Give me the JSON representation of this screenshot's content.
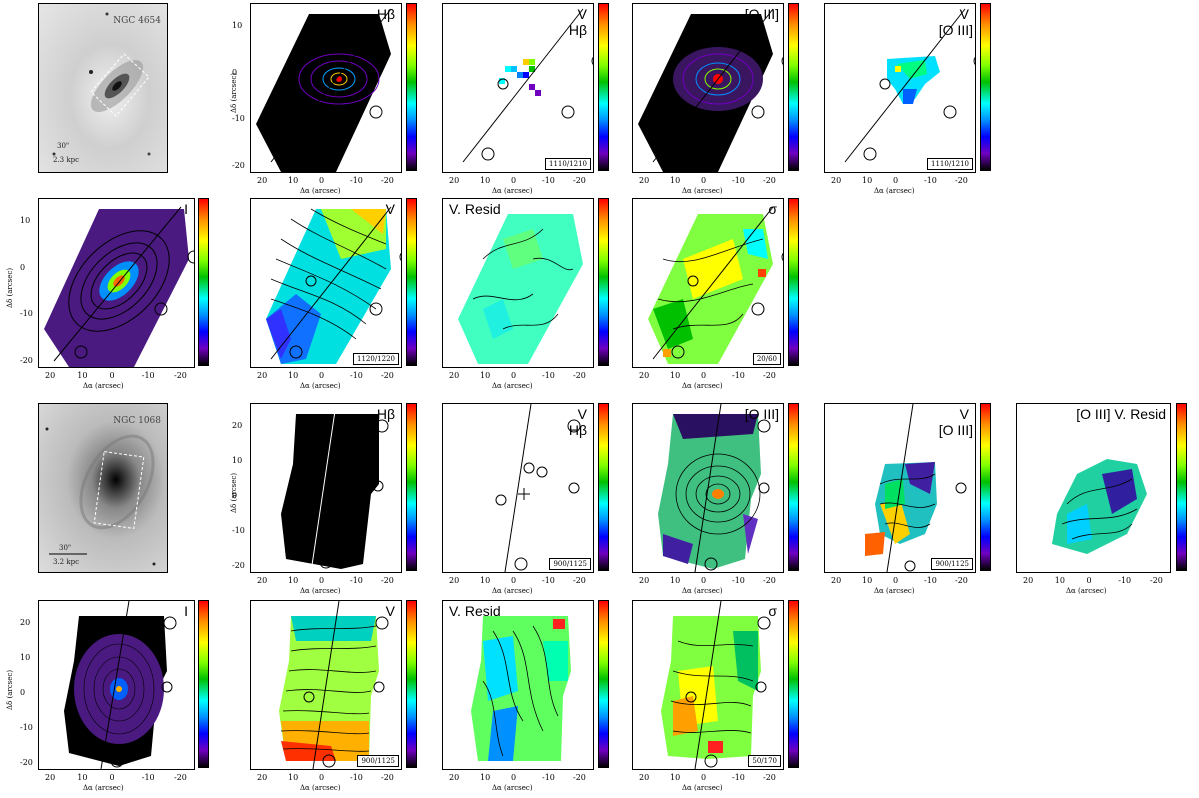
{
  "figure": {
    "xlabel": "Δα (arcsec)",
    "ylabel": "Δδ (arcsec)",
    "xticks": [
      "20",
      "10",
      "0",
      "-10",
      "-20"
    ],
    "yticks_top": [
      "10",
      "0",
      "-10",
      "-20"
    ],
    "yticks_bottom": [
      "20",
      "10",
      "0",
      "-10",
      "-20"
    ],
    "colors": {
      "contour": "#000000",
      "frame": "#000000"
    }
  },
  "galaxy1": {
    "name": "NGC 4654",
    "scale_arcsec": "30\"",
    "scale_kpc": "2.3 kpc",
    "row1": [
      {
        "title": "Hβ",
        "range": ""
      },
      {
        "title": "V",
        "subtitle": "Hβ",
        "range": "1110/1210"
      },
      {
        "title": "[O III]",
        "range": ""
      },
      {
        "title": "V",
        "subtitle": "[O III]",
        "range": "1110/1210"
      }
    ],
    "row2": [
      {
        "title": "I",
        "range": ""
      },
      {
        "title": "V",
        "range": "1120/1220"
      },
      {
        "title": "V. Resid",
        "range": ""
      },
      {
        "title": "σ",
        "range": "20/60"
      }
    ]
  },
  "galaxy2": {
    "name": "NGC 1068",
    "scale_arcsec": "30\"",
    "scale_kpc": "3.2 kpc",
    "row3": [
      {
        "title": "Hβ",
        "range": ""
      },
      {
        "title": "V",
        "subtitle": "Hβ",
        "range": "900/1125"
      },
      {
        "title": "[O III]",
        "range": ""
      },
      {
        "title": "V",
        "subtitle": "[O III]",
        "range": "900/1125"
      },
      {
        "title": "[O III] V. Resid",
        "range": ""
      }
    ],
    "row4": [
      {
        "title": "I",
        "range": ""
      },
      {
        "title": "V",
        "range": "900/1125"
      },
      {
        "title": "V. Resid",
        "range": ""
      },
      {
        "title": "σ",
        "range": "50/170"
      }
    ]
  }
}
